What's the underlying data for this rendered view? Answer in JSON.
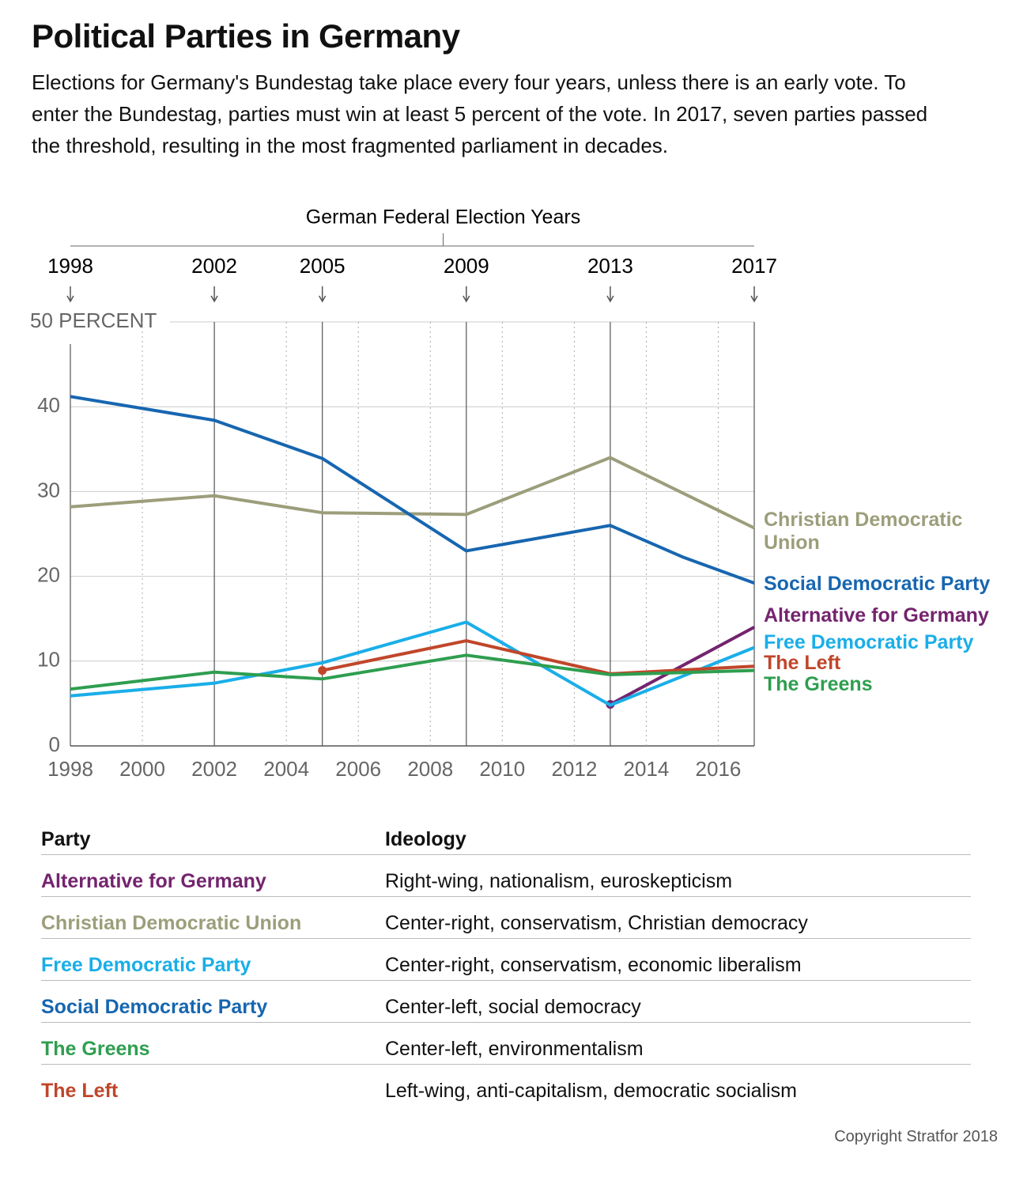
{
  "chart_data": {
    "type": "line",
    "title": "Political Parties in Germany",
    "subtitle": "Elections for Germany's Bundestag take place every four years, unless there is an early vote. To enter the Bundestag, parties must win at least 5 percent of the vote. In 2017, seven parties passed the threshold, resulting in the most fragmented parliament in decades.",
    "election_years_title": "German Federal Election Years",
    "election_years": [
      1998,
      2002,
      2005,
      2009,
      2013,
      2017
    ],
    "xlim": [
      1998,
      2017
    ],
    "xticks": [
      1998,
      2000,
      2002,
      2004,
      2006,
      2008,
      2010,
      2012,
      2014,
      2016
    ],
    "ylim": [
      0,
      50
    ],
    "yticks": [
      0,
      10,
      20,
      30,
      40,
      {
        "value": 50,
        "label": "50 PERCENT"
      }
    ],
    "grid": true,
    "series": [
      {
        "name": "Christian Democratic Union",
        "color": "#9c9e7b",
        "x": [
          1998,
          2002,
          2005,
          2009,
          2013,
          2017
        ],
        "values": [
          28.2,
          29.5,
          27.5,
          27.3,
          34.0,
          25.7
        ]
      },
      {
        "name": "Social Democratic Party",
        "color": "#1766b0",
        "x": [
          1998,
          2002,
          2005,
          2009,
          2013,
          2015,
          2017
        ],
        "values": [
          41.2,
          38.4,
          33.9,
          23.0,
          26.0,
          22.3,
          19.2
        ]
      },
      {
        "name": "Alternative for Germany",
        "color": "#74246e",
        "x": [
          2013,
          2017
        ],
        "values": [
          4.9,
          14.0
        ]
      },
      {
        "name": "Free Democratic Party",
        "color": "#1aaee8",
        "x": [
          1998,
          2002,
          2005,
          2009,
          2013,
          2017
        ],
        "values": [
          5.9,
          7.4,
          9.8,
          14.6,
          4.8,
          11.6
        ]
      },
      {
        "name": "The Left",
        "color": "#c0462a",
        "x": [
          2005,
          2009,
          2013,
          2017
        ],
        "values": [
          8.9,
          12.4,
          8.5,
          9.4
        ]
      },
      {
        "name": "The Greens",
        "color": "#2e9e4f",
        "x": [
          1998,
          2002,
          2005,
          2009,
          2013,
          2017
        ],
        "values": [
          6.7,
          8.7,
          7.9,
          10.7,
          8.4,
          8.9
        ]
      }
    ]
  },
  "table": {
    "header": [
      "Party",
      "Ideology"
    ],
    "rows": [
      {
        "party": "Alternative for Germany",
        "color": "#74246e",
        "ideology": "Right-wing, nationalism, euroskepticism"
      },
      {
        "party": "Christian Democratic Union",
        "color": "#9c9e7b",
        "ideology": "Center-right, conservatism, Christian democracy"
      },
      {
        "party": "Free Democratic Party",
        "color": "#1aaee8",
        "ideology": "Center-right, conservatism, economic liberalism"
      },
      {
        "party": "Social Democratic Party",
        "color": "#1766b0",
        "ideology": "Center-left, social democracy"
      },
      {
        "party": "The Greens",
        "color": "#2e9e4f",
        "ideology": "Center-left, environmentalism"
      },
      {
        "party": "The Left",
        "color": "#c0462a",
        "ideology": "Left-wing, anti-capitalism, democratic socialism"
      }
    ]
  },
  "copyright": "Copyright Stratfor 2018"
}
